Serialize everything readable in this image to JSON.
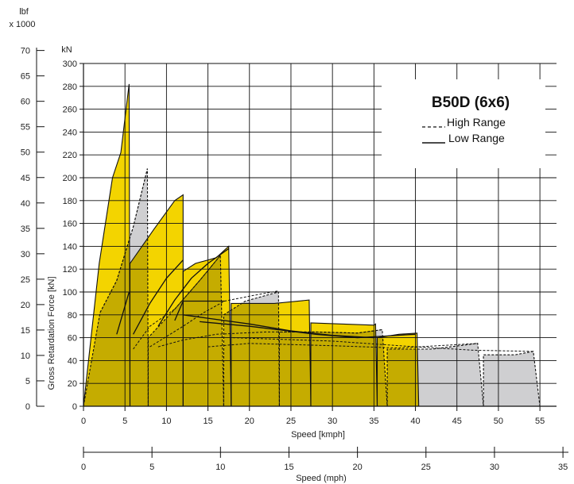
{
  "chart_data": {
    "type": "area",
    "title": "B50D (6x6)",
    "colors": {
      "low_fill": "#f3d400",
      "high_fill": "#cfcfd1",
      "overlap_fill": "#d6c07e",
      "grid": "#111111",
      "background": "#ffffff"
    },
    "legend": {
      "placement": "top-right",
      "entries": [
        {
          "label": "High Range",
          "line": "dashed"
        },
        {
          "label": "Low Range",
          "line": "solid"
        }
      ]
    },
    "x_kmph": {
      "label": "Speed [kmph]",
      "range": [
        0,
        57
      ],
      "ticks": [
        0,
        5,
        10,
        15,
        20,
        25,
        30,
        35,
        40,
        45,
        50,
        55
      ]
    },
    "x_mph": {
      "label": "Speed (mph)",
      "range": [
        0,
        35.4
      ],
      "ticks": [
        0,
        5,
        10,
        15,
        20,
        25,
        30,
        35
      ]
    },
    "y_kn": {
      "label": "Gross Retardation Force [kN]",
      "unit": "kN",
      "range": [
        0,
        300
      ],
      "ticks": [
        0,
        20,
        40,
        60,
        80,
        100,
        120,
        140,
        160,
        180,
        200,
        220,
        240,
        260,
        280,
        300
      ]
    },
    "y_lbf": {
      "unit": "lbf",
      "multiplier": "x 1000",
      "range": [
        0,
        70
      ],
      "ticks": [
        0,
        5,
        10,
        15,
        20,
        25,
        30,
        35,
        40,
        45,
        50,
        55,
        60,
        65,
        70
      ]
    },
    "grid": true,
    "low_range_gears": [
      {
        "gear": 1,
        "envelope": [
          [
            0,
            0
          ],
          [
            1.9,
            125
          ],
          [
            3.5,
            200
          ],
          [
            4.5,
            222
          ],
          [
            5.5,
            282
          ],
          [
            5.6,
            0
          ]
        ],
        "retarder_curve": [
          [
            4.0,
            63
          ],
          [
            5.5,
            100
          ]
        ]
      },
      {
        "gear": 2,
        "envelope": [
          [
            5.6,
            0
          ],
          [
            5.6,
            125
          ],
          [
            8.5,
            155
          ],
          [
            11.0,
            180
          ],
          [
            12.0,
            185
          ],
          [
            12.0,
            0
          ]
        ],
        "retarder_curve": [
          [
            6.0,
            63
          ],
          [
            8.0,
            90
          ],
          [
            10.0,
            112
          ],
          [
            12.0,
            128
          ]
        ]
      },
      {
        "gear": 3,
        "envelope": [
          [
            12.0,
            0
          ],
          [
            12.0,
            118
          ],
          [
            13.5,
            125
          ],
          [
            16.0,
            130
          ],
          [
            17.5,
            140
          ],
          [
            17.8,
            0
          ]
        ],
        "retarder_curve": [
          [
            9.0,
            70
          ],
          [
            11.0,
            93
          ],
          [
            13.0,
            112
          ],
          [
            15.0,
            125
          ],
          [
            17.5,
            138
          ]
        ]
      },
      {
        "gear": 4,
        "envelope": [
          [
            17.8,
            0
          ],
          [
            17.8,
            90
          ],
          [
            23.0,
            90
          ],
          [
            27.2,
            93
          ],
          [
            27.4,
            0
          ]
        ],
        "retarder_curve": [
          [
            11.0,
            75
          ],
          [
            12.0,
            92
          ],
          [
            15.0,
            92
          ],
          [
            17.0,
            92
          ]
        ]
      },
      {
        "gear": 5,
        "envelope": [
          [
            27.4,
            0
          ],
          [
            27.4,
            73
          ],
          [
            35.0,
            71
          ],
          [
            35.2,
            72
          ],
          [
            35.4,
            0
          ]
        ],
        "retarder_curve": [
          [
            12.0,
            80
          ],
          [
            15.0,
            77
          ],
          [
            20.0,
            72
          ],
          [
            25.0,
            66
          ],
          [
            30.0,
            62
          ],
          [
            35.0,
            60
          ]
        ]
      },
      {
        "gear": 6,
        "envelope": [
          [
            35.4,
            0
          ],
          [
            35.4,
            60
          ],
          [
            38.0,
            63
          ],
          [
            40.2,
            64
          ],
          [
            40.4,
            0
          ]
        ],
        "retarder_curve": [
          [
            14.0,
            74
          ],
          [
            20.0,
            70
          ],
          [
            28.0,
            63
          ],
          [
            33.0,
            60
          ],
          [
            40.0,
            63
          ]
        ]
      }
    ],
    "high_range_gears": [
      {
        "gear": 1,
        "envelope": [
          [
            0,
            0
          ],
          [
            2.0,
            82
          ],
          [
            4.0,
            110
          ],
          [
            6.0,
            157
          ],
          [
            7.7,
            208
          ],
          [
            7.8,
            0
          ]
        ],
        "retarder_curve": [
          [
            2.0,
            82
          ],
          [
            4.0,
            110
          ],
          [
            6.0,
            157
          ],
          [
            7.7,
            208
          ]
        ]
      },
      {
        "gear": 2,
        "envelope": [
          [
            7.8,
            0
          ],
          [
            7.8,
            60
          ],
          [
            11.0,
            85
          ],
          [
            14.0,
            110
          ],
          [
            16.5,
            132
          ],
          [
            16.9,
            0
          ]
        ],
        "retarder_curve": [
          [
            6.0,
            50
          ],
          [
            8.0,
            70
          ],
          [
            11.0,
            85
          ],
          [
            14.0,
            110
          ],
          [
            16.5,
            132
          ]
        ]
      },
      {
        "gear": 3,
        "envelope": [
          [
            16.9,
            0
          ],
          [
            16.9,
            80
          ],
          [
            19.5,
            92
          ],
          [
            22.0,
            97
          ],
          [
            23.5,
            100
          ],
          [
            23.6,
            0
          ]
        ],
        "retarder_curve": [
          [
            8.0,
            52
          ],
          [
            12.0,
            70
          ],
          [
            14.5,
            82
          ],
          [
            17.0,
            92
          ],
          [
            20.5,
            97
          ],
          [
            23.5,
            101
          ]
        ]
      },
      {
        "gear": 4,
        "envelope": [
          [
            23.6,
            0
          ],
          [
            23.6,
            65
          ],
          [
            28.0,
            65
          ],
          [
            33.0,
            64
          ],
          [
            36.0,
            67
          ],
          [
            36.6,
            0
          ]
        ],
        "retarder_curve": [
          [
            9.0,
            52
          ],
          [
            12.0,
            58
          ],
          [
            16.0,
            63
          ],
          [
            22.0,
            65
          ],
          [
            28.0,
            65
          ],
          [
            33.0,
            64
          ],
          [
            36.0,
            67
          ]
        ]
      },
      {
        "gear": 5,
        "envelope": [
          [
            36.6,
            0
          ],
          [
            36.6,
            50
          ],
          [
            42.0,
            50
          ],
          [
            47.5,
            55
          ],
          [
            48.2,
            0
          ]
        ],
        "retarder_curve": [
          [
            15.0,
            52
          ],
          [
            20.0,
            55
          ],
          [
            30.0,
            53
          ],
          [
            38.0,
            51
          ],
          [
            47.5,
            55
          ]
        ]
      },
      {
        "gear": 6,
        "envelope": [
          [
            48.2,
            0
          ],
          [
            48.2,
            45
          ],
          [
            52.0,
            45
          ],
          [
            54.2,
            48
          ],
          [
            55.0,
            0
          ]
        ],
        "retarder_curve": [
          [
            18.0,
            60
          ],
          [
            30.0,
            57
          ],
          [
            40.0,
            52
          ],
          [
            47.0,
            49
          ],
          [
            54.2,
            48
          ]
        ]
      }
    ]
  }
}
